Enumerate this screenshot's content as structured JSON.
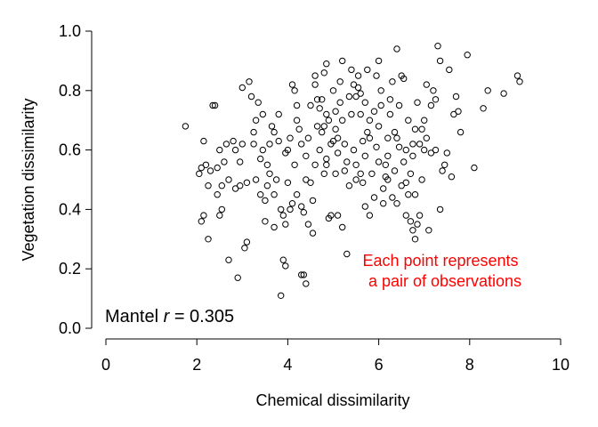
{
  "chart_data": {
    "type": "scatter",
    "xlabel": "Chemical dissimilarity",
    "ylabel": "Vegetation dissimilarity",
    "xlim": [
      0,
      10
    ],
    "ylim": [
      0,
      1
    ],
    "x_ticks": [
      "0",
      "2",
      "4",
      "6",
      "8",
      "10"
    ],
    "y_ticks": [
      "0.0",
      "0.2",
      "0.4",
      "0.6",
      "0.8",
      "1.0"
    ],
    "grid": false,
    "marker": "open-circle",
    "annotation": {
      "lines": [
        "Each point represents",
        "a pair of observations"
      ],
      "color": "#ff0000"
    },
    "stat_label": {
      "prefix": "Mantel ",
      "symbol": "r",
      "suffix": " = 0.305"
    },
    "points": [
      [
        1.75,
        0.68
      ],
      [
        2.05,
        0.52
      ],
      [
        2.1,
        0.54
      ],
      [
        2.15,
        0.63
      ],
      [
        2.2,
        0.55
      ],
      [
        2.25,
        0.48
      ],
      [
        2.3,
        0.53
      ],
      [
        2.35,
        0.75
      ],
      [
        2.4,
        0.75
      ],
      [
        2.45,
        0.54
      ],
      [
        2.5,
        0.6
      ],
      [
        2.55,
        0.48
      ],
      [
        2.6,
        0.56
      ],
      [
        2.1,
        0.36
      ],
      [
        2.15,
        0.38
      ],
      [
        2.25,
        0.3
      ],
      [
        2.5,
        0.38
      ],
      [
        2.55,
        0.4
      ],
      [
        2.7,
        0.23
      ],
      [
        2.8,
        0.63
      ],
      [
        2.85,
        0.47
      ],
      [
        2.9,
        0.17
      ],
      [
        2.95,
        0.48
      ],
      [
        3.0,
        0.62
      ],
      [
        3.05,
        0.27
      ],
      [
        3.1,
        0.29
      ],
      [
        3.0,
        0.81
      ],
      [
        3.15,
        0.83
      ],
      [
        3.2,
        0.78
      ],
      [
        3.25,
        0.62
      ],
      [
        3.3,
        0.7
      ],
      [
        3.35,
        0.76
      ],
      [
        3.4,
        0.45
      ],
      [
        3.4,
        0.57
      ],
      [
        3.45,
        0.6
      ],
      [
        3.5,
        0.43
      ],
      [
        3.55,
        0.55
      ],
      [
        3.6,
        0.52
      ],
      [
        3.65,
        0.68
      ],
      [
        3.7,
        0.66
      ],
      [
        3.75,
        0.5
      ],
      [
        3.8,
        0.72
      ],
      [
        3.85,
        0.4
      ],
      [
        3.9,
        0.38
      ],
      [
        3.95,
        0.35
      ],
      [
        3.85,
        0.11
      ],
      [
        3.9,
        0.23
      ],
      [
        3.95,
        0.21
      ],
      [
        4.0,
        0.49
      ],
      [
        4.05,
        0.64
      ],
      [
        4.1,
        0.82
      ],
      [
        4.15,
        0.8
      ],
      [
        4.2,
        0.75
      ],
      [
        4.25,
        0.67
      ],
      [
        4.3,
        0.18
      ],
      [
        4.35,
        0.18
      ],
      [
        4.4,
        0.15
      ],
      [
        4.3,
        0.41
      ],
      [
        4.35,
        0.39
      ],
      [
        4.4,
        0.58
      ],
      [
        4.45,
        0.64
      ],
      [
        4.5,
        0.49
      ],
      [
        4.55,
        0.43
      ],
      [
        4.6,
        0.82
      ],
      [
        4.65,
        0.77
      ],
      [
        4.7,
        0.74
      ],
      [
        4.75,
        0.66
      ],
      [
        4.8,
        0.68
      ],
      [
        4.85,
        0.55
      ],
      [
        4.9,
        0.37
      ],
      [
        4.95,
        0.38
      ],
      [
        4.8,
        0.86
      ],
      [
        4.85,
        0.89
      ],
      [
        5.0,
        0.8
      ],
      [
        5.05,
        0.73
      ],
      [
        5.1,
        0.64
      ],
      [
        5.15,
        0.83
      ],
      [
        5.2,
        0.9
      ],
      [
        5.25,
        0.62
      ],
      [
        5.3,
        0.56
      ],
      [
        5.35,
        0.48
      ],
      [
        5.4,
        0.87
      ],
      [
        5.45,
        0.82
      ],
      [
        5.5,
        0.78
      ],
      [
        5.55,
        0.85
      ],
      [
        5.6,
        0.79
      ],
      [
        5.65,
        0.63
      ],
      [
        5.7,
        0.58
      ],
      [
        5.75,
        0.66
      ],
      [
        5.8,
        0.7
      ],
      [
        5.85,
        0.52
      ],
      [
        5.9,
        0.44
      ],
      [
        5.95,
        0.61
      ],
      [
        6.0,
        0.9
      ],
      [
        6.05,
        0.75
      ],
      [
        6.1,
        0.47
      ],
      [
        6.15,
        0.55
      ],
      [
        6.2,
        0.64
      ],
      [
        6.25,
        0.72
      ],
      [
        6.3,
        0.83
      ],
      [
        6.35,
        0.53
      ],
      [
        6.4,
        0.94
      ],
      [
        6.45,
        0.61
      ],
      [
        6.5,
        0.85
      ],
      [
        6.55,
        0.84
      ],
      [
        6.6,
        0.49
      ],
      [
        6.65,
        0.45
      ],
      [
        6.7,
        0.36
      ],
      [
        6.75,
        0.33
      ],
      [
        6.8,
        0.3
      ],
      [
        6.85,
        0.35
      ],
      [
        6.9,
        0.38
      ],
      [
        6.95,
        0.67
      ],
      [
        7.0,
        0.7
      ],
      [
        7.05,
        0.64
      ],
      [
        7.1,
        0.33
      ],
      [
        7.15,
        0.75
      ],
      [
        7.2,
        0.8
      ],
      [
        7.25,
        0.6
      ],
      [
        7.3,
        0.95
      ],
      [
        7.35,
        0.9
      ],
      [
        7.4,
        0.53
      ],
      [
        7.45,
        0.55
      ],
      [
        7.5,
        0.59
      ],
      [
        7.55,
        0.87
      ],
      [
        7.6,
        0.51
      ],
      [
        7.7,
        0.78
      ],
      [
        7.75,
        0.73
      ],
      [
        7.8,
        0.66
      ],
      [
        7.95,
        0.92
      ],
      [
        8.1,
        0.54
      ],
      [
        8.3,
        0.74
      ],
      [
        8.4,
        0.8
      ],
      [
        8.75,
        0.79
      ],
      [
        9.05,
        0.85
      ],
      [
        9.1,
        0.83
      ],
      [
        5.1,
        0.38
      ],
      [
        5.2,
        0.34
      ],
      [
        5.3,
        0.25
      ],
      [
        5.5,
        0.5
      ],
      [
        5.6,
        0.52
      ],
      [
        5.7,
        0.41
      ],
      [
        4.2,
        0.45
      ],
      [
        4.4,
        0.5
      ],
      [
        4.6,
        0.55
      ],
      [
        4.7,
        0.6
      ],
      [
        4.9,
        0.7
      ],
      [
        5.0,
        0.63
      ],
      [
        4.5,
        0.75
      ],
      [
        4.6,
        0.85
      ],
      [
        4.2,
        0.7
      ],
      [
        4.0,
        0.6
      ],
      [
        3.8,
        0.63
      ],
      [
        3.6,
        0.62
      ],
      [
        3.3,
        0.5
      ],
      [
        3.5,
        0.36
      ],
      [
        3.7,
        0.34
      ],
      [
        4.1,
        0.42
      ],
      [
        4.8,
        0.52
      ],
      [
        5.5,
        0.55
      ],
      [
        6.0,
        0.68
      ],
      [
        6.2,
        0.58
      ],
      [
        6.4,
        0.64
      ],
      [
        6.6,
        0.6
      ],
      [
        6.8,
        0.67
      ],
      [
        7.0,
        0.6
      ],
      [
        5.9,
        0.73
      ],
      [
        5.7,
        0.76
      ],
      [
        5.4,
        0.72
      ],
      [
        5.2,
        0.7
      ],
      [
        5.1,
        0.59
      ],
      [
        4.95,
        0.62
      ],
      [
        6.9,
        0.62
      ],
      [
        6.3,
        0.44
      ],
      [
        6.1,
        0.42
      ],
      [
        5.8,
        0.38
      ],
      [
        6.5,
        0.48
      ],
      [
        6.7,
        0.52
      ],
      [
        4.45,
        0.35
      ],
      [
        4.55,
        0.32
      ],
      [
        4.05,
        0.4
      ],
      [
        3.7,
        0.45
      ],
      [
        3.55,
        0.48
      ],
      [
        3.1,
        0.49
      ],
      [
        2.95,
        0.56
      ],
      [
        2.7,
        0.5
      ],
      [
        6.05,
        0.8
      ],
      [
        6.25,
        0.77
      ],
      [
        6.45,
        0.75
      ],
      [
        5.95,
        0.85
      ],
      [
        5.75,
        0.87
      ],
      [
        5.55,
        0.81
      ],
      [
        4.75,
        0.77
      ],
      [
        4.65,
        0.68
      ],
      [
        4.3,
        0.62
      ],
      [
        4.15,
        0.55
      ],
      [
        3.95,
        0.59
      ],
      [
        3.45,
        0.72
      ],
      [
        3.25,
        0.66
      ],
      [
        2.85,
        0.6
      ],
      [
        2.65,
        0.62
      ],
      [
        2.45,
        0.45
      ],
      [
        7.65,
        0.72
      ],
      [
        7.25,
        0.77
      ],
      [
        7.05,
        0.82
      ],
      [
        6.85,
        0.76
      ],
      [
        6.65,
        0.7
      ],
      [
        6.35,
        0.66
      ],
      [
        6.15,
        0.51
      ],
      [
        6.55,
        0.56
      ],
      [
        6.75,
        0.62
      ],
      [
        5.35,
        0.78
      ],
      [
        5.15,
        0.76
      ],
      [
        5.05,
        0.67
      ],
      [
        4.85,
        0.72
      ],
      [
        5.25,
        0.53
      ],
      [
        5.45,
        0.6
      ],
      [
        5.65,
        0.49
      ],
      [
        6.95,
        0.5
      ],
      [
        7.15,
        0.59
      ],
      [
        7.35,
        0.4
      ],
      [
        5.05,
        0.52
      ],
      [
        4.85,
        0.57
      ],
      [
        5.6,
        0.72
      ],
      [
        5.8,
        0.64
      ],
      [
        6.0,
        0.56
      ],
      [
        6.2,
        0.5
      ],
      [
        6.4,
        0.42
      ],
      [
        6.6,
        0.38
      ],
      [
        6.8,
        0.45
      ],
      [
        6.75,
        0.58
      ]
    ]
  }
}
